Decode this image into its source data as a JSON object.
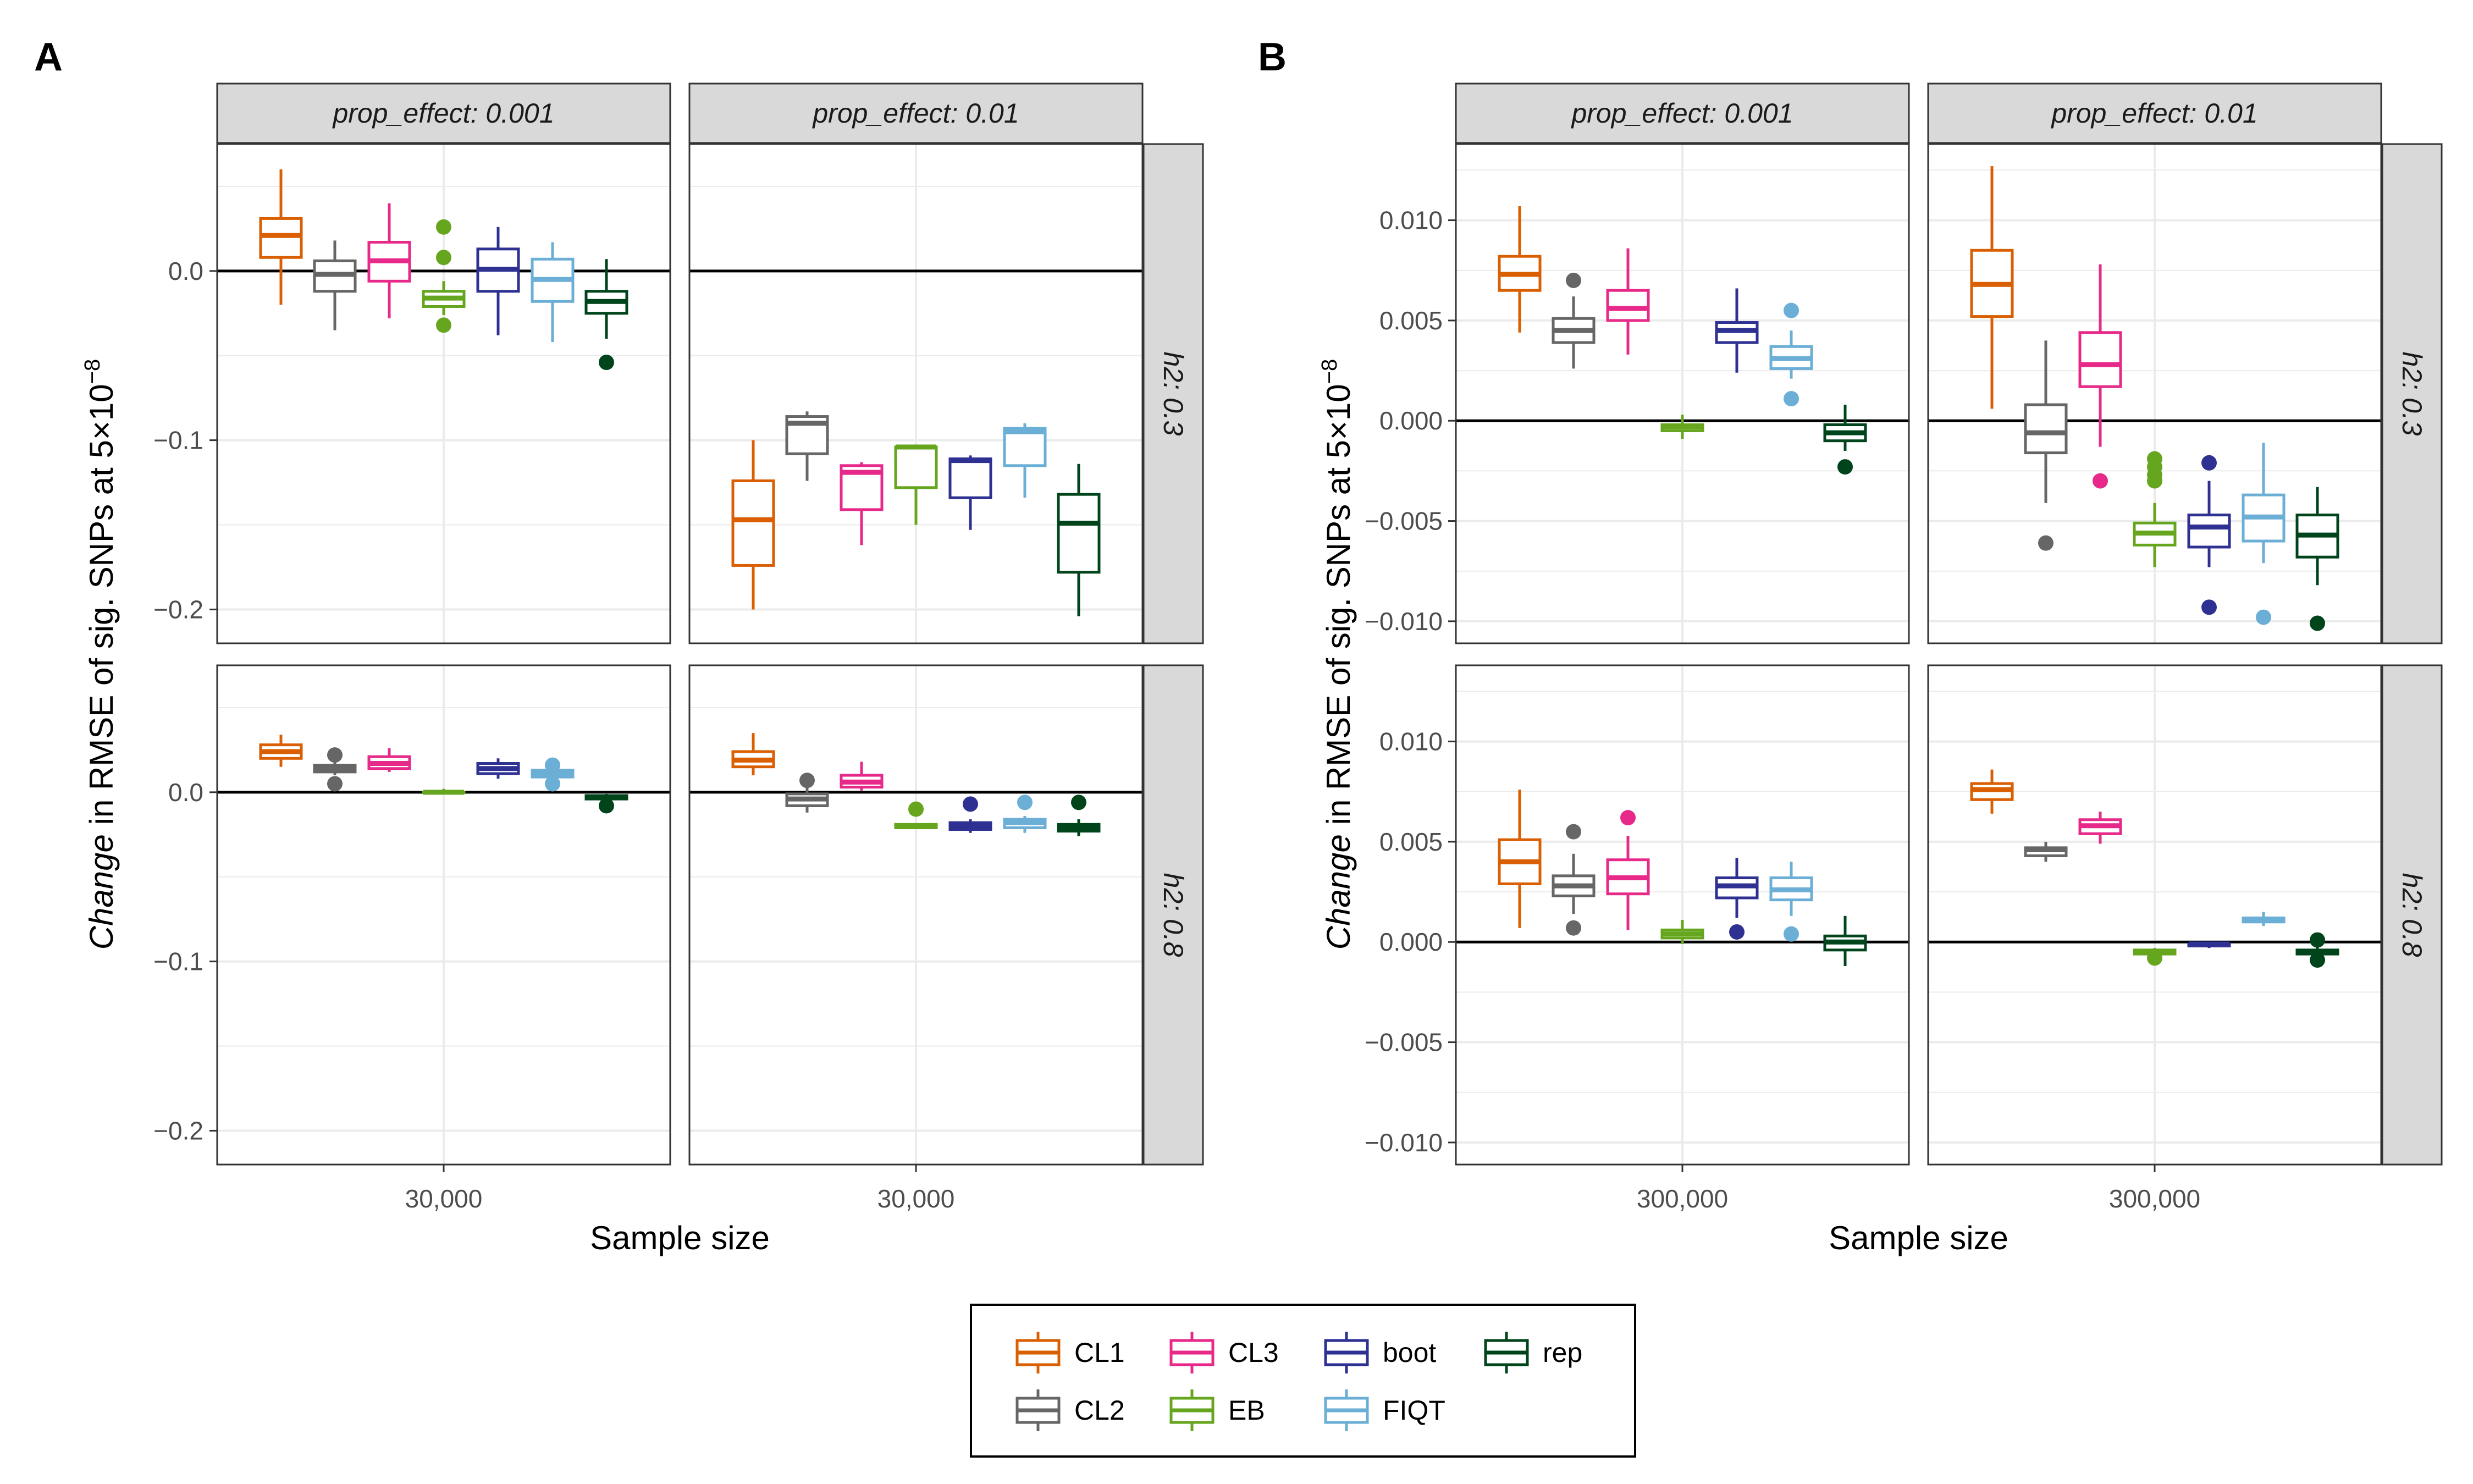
{
  "panel_labels": [
    "A",
    "B"
  ],
  "strip_prefix_col": "prop_effect: ",
  "strip_prefix_row": "h2: ",
  "ylabel_em": "Change",
  "ylabel_mid": " in RMSE of sig. SNPs at  5",
  "ylabel_times": "×",
  "ylabel_base": "10",
  "ylabel_exp": "−8",
  "xlabel": "Sample size",
  "legend": {
    "items": [
      {
        "key": "CL1",
        "label": "CL1",
        "color": "#D95F02"
      },
      {
        "key": "CL2",
        "label": "CL2",
        "color": "#666666"
      },
      {
        "key": "CL3",
        "label": "CL3",
        "color": "#E7298A"
      },
      {
        "key": "EB",
        "label": "EB",
        "color": "#66A61E"
      },
      {
        "key": "boot",
        "label": "boot",
        "color": "#2E3192"
      },
      {
        "key": "FIQT",
        "label": "FIQT",
        "color": "#6BAED6"
      },
      {
        "key": "rep",
        "label": "rep",
        "color": "#00441B"
      }
    ]
  },
  "chart_data": [
    {
      "type": "box",
      "panel": "A",
      "col_facet_values": [
        "0.001",
        "0.01"
      ],
      "row_facet_values": [
        "0.3",
        "0.8"
      ],
      "methods": [
        "CL1",
        "CL2",
        "CL3",
        "EB",
        "boot",
        "FIQT",
        "rep"
      ],
      "x_tick": "30,000",
      "ylim": [
        -0.22,
        0.075
      ],
      "y_ticks": [
        0.0,
        -0.1,
        -0.2
      ],
      "y_tick_labels": [
        "0.0",
        "−0.1",
        "−0.2"
      ],
      "minor_y_ticks": [
        0.05,
        -0.05,
        -0.15
      ],
      "hline": 0,
      "facets": [
        {
          "prop_effect": "0.001",
          "h2": "0.3",
          "boxes": [
            {
              "method": "CL1",
              "lw": -0.02,
              "q1": 0.008,
              "med": 0.021,
              "q3": 0.031,
              "uw": 0.06,
              "outliers": []
            },
            {
              "method": "CL2",
              "lw": -0.035,
              "q1": -0.012,
              "med": -0.002,
              "q3": 0.006,
              "uw": 0.018,
              "outliers": []
            },
            {
              "method": "CL3",
              "lw": -0.028,
              "q1": -0.006,
              "med": 0.006,
              "q3": 0.017,
              "uw": 0.04,
              "outliers": []
            },
            {
              "method": "EB",
              "lw": -0.026,
              "q1": -0.021,
              "med": -0.016,
              "q3": -0.012,
              "uw": -0.006,
              "outliers": [
                0.026,
                0.008,
                -0.032
              ]
            },
            {
              "method": "boot",
              "lw": -0.038,
              "q1": -0.012,
              "med": 0.001,
              "q3": 0.013,
              "uw": 0.026,
              "outliers": []
            },
            {
              "method": "FIQT",
              "lw": -0.042,
              "q1": -0.018,
              "med": -0.005,
              "q3": 0.007,
              "uw": 0.017,
              "outliers": []
            },
            {
              "method": "rep",
              "lw": -0.04,
              "q1": -0.025,
              "med": -0.018,
              "q3": -0.012,
              "uw": 0.007,
              "outliers": [
                -0.054
              ]
            }
          ]
        },
        {
          "prop_effect": "0.01",
          "h2": "0.3",
          "boxes": [
            {
              "method": "CL1",
              "lw": -0.2,
              "q1": -0.174,
              "med": -0.147,
              "q3": -0.124,
              "uw": -0.1,
              "outliers": []
            },
            {
              "method": "CL2",
              "lw": -0.124,
              "q1": -0.108,
              "med": -0.09,
              "q3": -0.086,
              "uw": -0.083,
              "outliers": []
            },
            {
              "method": "CL3",
              "lw": -0.162,
              "q1": -0.141,
              "med": -0.119,
              "q3": -0.115,
              "uw": -0.113,
              "outliers": []
            },
            {
              "method": "EB",
              "lw": -0.15,
              "q1": -0.128,
              "med": -0.104,
              "q3": -0.104,
              "uw": -0.104,
              "outliers": []
            },
            {
              "method": "boot",
              "lw": -0.153,
              "q1": -0.134,
              "med": -0.112,
              "q3": -0.111,
              "uw": -0.109,
              "outliers": []
            },
            {
              "method": "FIQT",
              "lw": -0.134,
              "q1": -0.115,
              "med": -0.095,
              "q3": -0.093,
              "uw": -0.09,
              "outliers": []
            },
            {
              "method": "rep",
              "lw": -0.204,
              "q1": -0.178,
              "med": -0.149,
              "q3": -0.132,
              "uw": -0.114,
              "outliers": []
            }
          ]
        },
        {
          "prop_effect": "0.001",
          "h2": "0.8",
          "boxes": [
            {
              "method": "CL1",
              "lw": 0.015,
              "q1": 0.02,
              "med": 0.024,
              "q3": 0.028,
              "uw": 0.034,
              "outliers": []
            },
            {
              "method": "CL2",
              "lw": 0.01,
              "q1": 0.012,
              "med": 0.014,
              "q3": 0.016,
              "uw": 0.018,
              "outliers": [
                0.022,
                0.005
              ]
            },
            {
              "method": "CL3",
              "lw": 0.012,
              "q1": 0.014,
              "med": 0.017,
              "q3": 0.021,
              "uw": 0.026,
              "outliers": []
            },
            {
              "method": "EB",
              "lw": 0.0,
              "q1": 0.0,
              "med": 0.0,
              "q3": 0.0,
              "uw": 0.002,
              "outliers": []
            },
            {
              "method": "boot",
              "lw": 0.008,
              "q1": 0.011,
              "med": 0.014,
              "q3": 0.017,
              "uw": 0.02,
              "outliers": []
            },
            {
              "method": "FIQT",
              "lw": 0.008,
              "q1": 0.009,
              "med": 0.011,
              "q3": 0.013,
              "uw": 0.015,
              "outliers": [
                0.016,
                0.005
              ]
            },
            {
              "method": "rep",
              "lw": -0.004,
              "q1": -0.004,
              "med": -0.003,
              "q3": -0.002,
              "uw": -0.001,
              "outliers": [
                -0.008
              ]
            }
          ]
        },
        {
          "prop_effect": "0.01",
          "h2": "0.8",
          "boxes": [
            {
              "method": "CL1",
              "lw": 0.01,
              "q1": 0.015,
              "med": 0.019,
              "q3": 0.024,
              "uw": 0.035,
              "outliers": []
            },
            {
              "method": "CL2",
              "lw": -0.012,
              "q1": -0.008,
              "med": -0.004,
              "q3": -0.001,
              "uw": 0.003,
              "outliers": [
                0.007
              ]
            },
            {
              "method": "CL3",
              "lw": 0.001,
              "q1": 0.003,
              "med": 0.006,
              "q3": 0.01,
              "uw": 0.018,
              "outliers": []
            },
            {
              "method": "EB",
              "lw": -0.021,
              "q1": -0.021,
              "med": -0.02,
              "q3": -0.019,
              "uw": -0.019,
              "outliers": [
                -0.01
              ]
            },
            {
              "method": "boot",
              "lw": -0.024,
              "q1": -0.022,
              "med": -0.02,
              "q3": -0.018,
              "uw": -0.016,
              "outliers": [
                -0.007
              ]
            },
            {
              "method": "FIQT",
              "lw": -0.024,
              "q1": -0.021,
              "med": -0.018,
              "q3": -0.016,
              "uw": -0.014,
              "outliers": [
                -0.006
              ]
            },
            {
              "method": "rep",
              "lw": -0.026,
              "q1": -0.023,
              "med": -0.021,
              "q3": -0.019,
              "uw": -0.016,
              "outliers": [
                -0.006
              ]
            }
          ]
        }
      ]
    },
    {
      "type": "box",
      "panel": "B",
      "col_facet_values": [
        "0.001",
        "0.01"
      ],
      "row_facet_values": [
        "0.3",
        "0.8"
      ],
      "methods": [
        "CL1",
        "CL2",
        "CL3",
        "EB",
        "boot",
        "FIQT",
        "rep"
      ],
      "x_tick": "300,000",
      "ylim": [
        -0.0111,
        0.0138
      ],
      "y_ticks": [
        0.01,
        0.005,
        0.0,
        -0.005,
        -0.01
      ],
      "y_tick_labels": [
        "0.010",
        "0.005",
        "0.000",
        "−0.005",
        "−0.010"
      ],
      "minor_y_ticks": [
        0.0125,
        0.0075,
        0.0025,
        -0.0025,
        -0.0075
      ],
      "hline": 0,
      "facets": [
        {
          "prop_effect": "0.001",
          "h2": "0.3",
          "boxes": [
            {
              "method": "CL1",
              "lw": 0.0044,
              "q1": 0.0065,
              "med": 0.0073,
              "q3": 0.0082,
              "uw": 0.0107,
              "outliers": []
            },
            {
              "method": "CL2",
              "lw": 0.0026,
              "q1": 0.0039,
              "med": 0.0045,
              "q3": 0.0051,
              "uw": 0.0062,
              "outliers": [
                0.007
              ]
            },
            {
              "method": "CL3",
              "lw": 0.0033,
              "q1": 0.005,
              "med": 0.0056,
              "q3": 0.0065,
              "uw": 0.0086,
              "outliers": []
            },
            {
              "method": "EB",
              "lw": -0.0009,
              "q1": -0.0005,
              "med": -0.0003,
              "q3": -0.0002,
              "uw": 0.0003,
              "outliers": []
            },
            {
              "method": "boot",
              "lw": 0.0024,
              "q1": 0.0039,
              "med": 0.0045,
              "q3": 0.0049,
              "uw": 0.0066,
              "outliers": []
            },
            {
              "method": "FIQT",
              "lw": 0.0021,
              "q1": 0.0026,
              "med": 0.0031,
              "q3": 0.0037,
              "uw": 0.0045,
              "outliers": [
                0.0055,
                0.0011
              ]
            },
            {
              "method": "rep",
              "lw": -0.0015,
              "q1": -0.001,
              "med": -0.0006,
              "q3": -0.0002,
              "uw": 0.0008,
              "outliers": [
                -0.0023
              ]
            }
          ]
        },
        {
          "prop_effect": "0.01",
          "h2": "0.3",
          "boxes": [
            {
              "method": "CL1",
              "lw": 0.0006,
              "q1": 0.0052,
              "med": 0.0068,
              "q3": 0.0085,
              "uw": 0.0127,
              "outliers": []
            },
            {
              "method": "CL2",
              "lw": -0.0041,
              "q1": -0.0016,
              "med": -0.0006,
              "q3": 0.0008,
              "uw": 0.004,
              "outliers": [
                -0.0061
              ]
            },
            {
              "method": "CL3",
              "lw": -0.0013,
              "q1": 0.0017,
              "med": 0.0028,
              "q3": 0.0044,
              "uw": 0.0078,
              "outliers": [
                -0.003
              ]
            },
            {
              "method": "EB",
              "lw": -0.0073,
              "q1": -0.0062,
              "med": -0.0056,
              "q3": -0.0051,
              "uw": -0.0041,
              "outliers": [
                -0.0019,
                -0.0023,
                -0.0027,
                -0.003
              ]
            },
            {
              "method": "boot",
              "lw": -0.0073,
              "q1": -0.0063,
              "med": -0.0053,
              "q3": -0.0047,
              "uw": -0.003,
              "outliers": [
                -0.0021,
                -0.0093
              ]
            },
            {
              "method": "FIQT",
              "lw": -0.0071,
              "q1": -0.006,
              "med": -0.0048,
              "q3": -0.0037,
              "uw": -0.0011,
              "outliers": [
                -0.0098
              ]
            },
            {
              "method": "rep",
              "lw": -0.0082,
              "q1": -0.0068,
              "med": -0.0057,
              "q3": -0.0047,
              "uw": -0.0033,
              "outliers": [
                -0.0101
              ]
            }
          ]
        },
        {
          "prop_effect": "0.001",
          "h2": "0.8",
          "boxes": [
            {
              "method": "CL1",
              "lw": 0.0007,
              "q1": 0.0029,
              "med": 0.004,
              "q3": 0.0051,
              "uw": 0.0076,
              "outliers": []
            },
            {
              "method": "CL2",
              "lw": 0.0014,
              "q1": 0.0023,
              "med": 0.0028,
              "q3": 0.0033,
              "uw": 0.0044,
              "outliers": [
                0.0055,
                0.0007
              ]
            },
            {
              "method": "CL3",
              "lw": 0.0006,
              "q1": 0.0024,
              "med": 0.0032,
              "q3": 0.0041,
              "uw": 0.0053,
              "outliers": [
                0.0062
              ]
            },
            {
              "method": "EB",
              "lw": -0.0001,
              "q1": 0.0002,
              "med": 0.0004,
              "q3": 0.0006,
              "uw": 0.0011,
              "outliers": []
            },
            {
              "method": "boot",
              "lw": 0.0012,
              "q1": 0.0022,
              "med": 0.0028,
              "q3": 0.0032,
              "uw": 0.0042,
              "outliers": [
                0.0005
              ]
            },
            {
              "method": "FIQT",
              "lw": 0.0013,
              "q1": 0.0021,
              "med": 0.0026,
              "q3": 0.0032,
              "uw": 0.004,
              "outliers": [
                0.0004
              ]
            },
            {
              "method": "rep",
              "lw": -0.0012,
              "q1": -0.0004,
              "med": 0.0,
              "q3": 0.0003,
              "uw": 0.0013,
              "outliers": []
            }
          ]
        },
        {
          "prop_effect": "0.01",
          "h2": "0.8",
          "boxes": [
            {
              "method": "CL1",
              "lw": 0.0064,
              "q1": 0.0071,
              "med": 0.0076,
              "q3": 0.0079,
              "uw": 0.0086,
              "outliers": []
            },
            {
              "method": "CL2",
              "lw": 0.004,
              "q1": 0.0043,
              "med": 0.0046,
              "q3": 0.0047,
              "uw": 0.005,
              "outliers": []
            },
            {
              "method": "CL3",
              "lw": 0.0049,
              "q1": 0.0054,
              "med": 0.0058,
              "q3": 0.0061,
              "uw": 0.0065,
              "outliers": []
            },
            {
              "method": "EB",
              "lw": -0.0007,
              "q1": -0.0006,
              "med": -0.0005,
              "q3": -0.0004,
              "uw": -0.0003,
              "outliers": [
                -0.0008
              ]
            },
            {
              "method": "boot",
              "lw": -0.0003,
              "q1": -0.0002,
              "med": -0.0001,
              "q3": -0.0001,
              "uw": 0.0,
              "outliers": []
            },
            {
              "method": "FIQT",
              "lw": 0.0008,
              "q1": 0.001,
              "med": 0.0011,
              "q3": 0.0012,
              "uw": 0.0015,
              "outliers": []
            },
            {
              "method": "rep",
              "lw": -0.0008,
              "q1": -0.0006,
              "med": -0.0005,
              "q3": -0.0004,
              "uw": -0.0002,
              "outliers": [
                0.0001,
                -0.0009
              ]
            }
          ]
        }
      ]
    }
  ]
}
